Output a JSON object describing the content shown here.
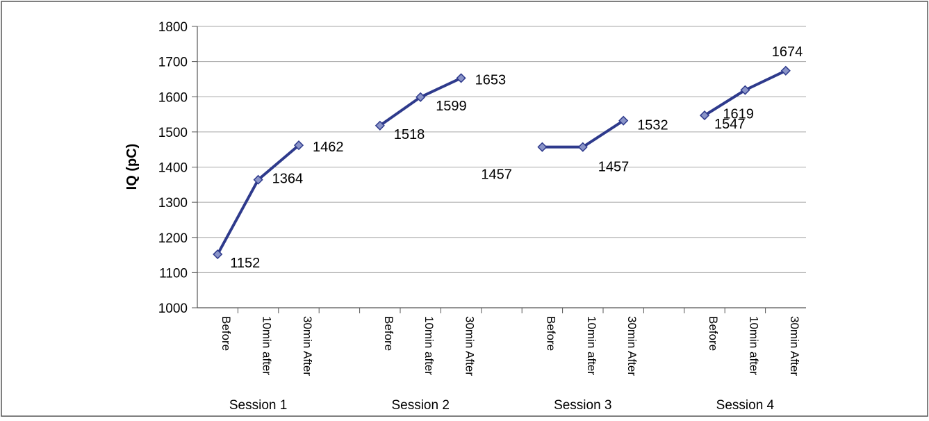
{
  "chart_data": {
    "type": "line",
    "ylabel": "IQ (pC)",
    "ylim": [
      1000,
      1800
    ],
    "yticks": [
      1000,
      1100,
      1200,
      1300,
      1400,
      1500,
      1600,
      1700,
      1800
    ],
    "grid": true,
    "groups": [
      {
        "name": "Session 1",
        "categories": [
          "Before",
          "10min after",
          "30min After"
        ],
        "values": [
          1152,
          1364,
          1462
        ]
      },
      {
        "name": "Session 2",
        "categories": [
          "Before",
          "10min after",
          "30min After"
        ],
        "values": [
          1518,
          1599,
          1653
        ]
      },
      {
        "name": "Session 3",
        "categories": [
          "Before",
          "10min after",
          "30min After"
        ],
        "values": [
          1457,
          1457,
          1532
        ]
      },
      {
        "name": "Session 4",
        "categories": [
          "Before",
          "10min after",
          "30min After"
        ],
        "values": [
          1547,
          1619,
          1674
        ]
      }
    ]
  },
  "colors": {
    "line": "#2e3a8c",
    "marker_fill": "#8a94c8",
    "grid": "#a6a6a6",
    "frame": "#555555"
  }
}
